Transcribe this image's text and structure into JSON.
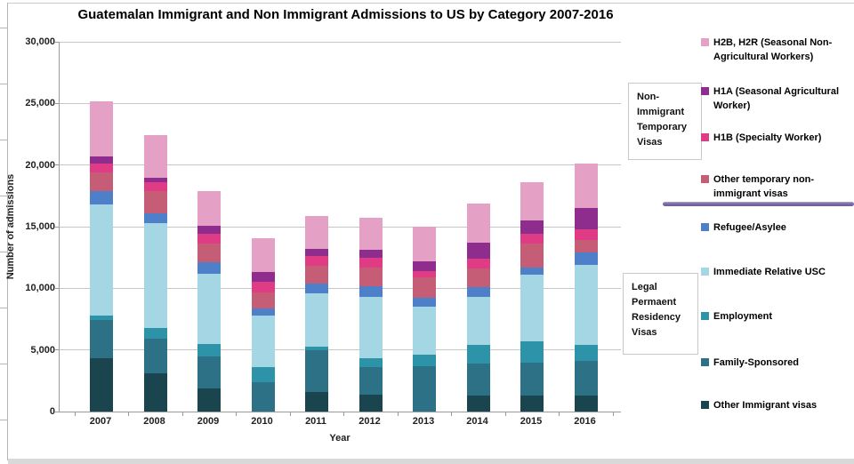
{
  "chart_data": {
    "type": "bar",
    "stacked": true,
    "title": "Guatemalan Immigrant and Non Immigrant Admissions to US by Category 2007-2016",
    "xlabel": "Year",
    "ylabel": "Number of admissions",
    "ylim": [
      0,
      30000
    ],
    "ytick_step": 5000,
    "grid": true,
    "legend_position": "right",
    "categories": [
      "2007",
      "2008",
      "2009",
      "2010",
      "2011",
      "2012",
      "2013",
      "2014",
      "2015",
      "2016"
    ],
    "series": [
      {
        "name": "Other Immigrant visas",
        "color": "#1a454f",
        "values": [
          4300,
          3100,
          1900,
          0,
          1600,
          1400,
          0,
          1300,
          1300,
          1300
        ]
      },
      {
        "name": "Family-Sponsored",
        "color": "#2d7186",
        "values": [
          3100,
          2800,
          2600,
          2400,
          3400,
          2200,
          3700,
          2600,
          2700,
          2800
        ]
      },
      {
        "name": "Employment",
        "color": "#2d93a8",
        "values": [
          400,
          900,
          1000,
          1200,
          300,
          700,
          900,
          1500,
          1700,
          1300
        ]
      },
      {
        "name": "Immediate Relative USC",
        "color": "#a4d6e3",
        "values": [
          9000,
          8500,
          5700,
          4200,
          4300,
          5000,
          3900,
          3900,
          5400,
          6500
        ]
      },
      {
        "name": "Refugee/Asylee",
        "color": "#4e7fc9",
        "values": [
          1100,
          800,
          900,
          600,
          800,
          900,
          700,
          800,
          600,
          1000
        ]
      },
      {
        "name": "Other temporary non-immigrant visas",
        "color": "#c65d76",
        "values": [
          1500,
          1800,
          1500,
          1300,
          1400,
          1500,
          1700,
          1500,
          1900,
          1000
        ]
      },
      {
        "name": "H1B (Specialty Worker)",
        "color": "#e03c86",
        "values": [
          700,
          700,
          800,
          800,
          800,
          800,
          500,
          800,
          800,
          900
        ]
      },
      {
        "name": "H1A (Seasonal Agricultural Worker)",
        "color": "#8e2d8e",
        "values": [
          600,
          400,
          700,
          800,
          600,
          600,
          800,
          1300,
          1100,
          1700
        ]
      },
      {
        "name": "H2B, H2R (Seasonal Non-Agricultural Workers)",
        "color": "#e5a0c5",
        "values": [
          4500,
          3400,
          2800,
          2800,
          2700,
          2600,
          2800,
          3200,
          3100,
          3600
        ]
      }
    ]
  },
  "legend": {
    "items": [
      {
        "label": "H2B, H2R (Seasonal Non-\nAgricultural Workers)",
        "color": "#e5a0c5"
      },
      {
        "label": "H1A (Seasonal Agricultural\nWorker)",
        "color": "#8e2d8e"
      },
      {
        "label": "H1B (Specialty Worker)",
        "color": "#e03c86"
      },
      {
        "label": "Other temporary non-\nimmigrant visas",
        "color": "#c65d76"
      },
      {
        "label": "Refugee/Asylee",
        "color": "#4e7fc9"
      },
      {
        "label": "Immediate Relative USC",
        "color": "#a4d6e3"
      },
      {
        "label": "Employment",
        "color": "#2d93a8"
      },
      {
        "label": "Family-Sponsored",
        "color": "#2d7186"
      },
      {
        "label": "Other Immigrant visas",
        "color": "#1a454f"
      }
    ]
  },
  "annotations": {
    "non_immigrant_box": "Non-\nImmigrant\nTemporary\nVisas",
    "legal_permanent_box": "Legal\nPermaent\nResidency\nVisas",
    "divider_color": "#7e6ba8"
  },
  "axis_ticks": {
    "y": [
      "0",
      "5,000",
      "10,000",
      "15,000",
      "20,000",
      "25,000",
      "30,000"
    ]
  }
}
